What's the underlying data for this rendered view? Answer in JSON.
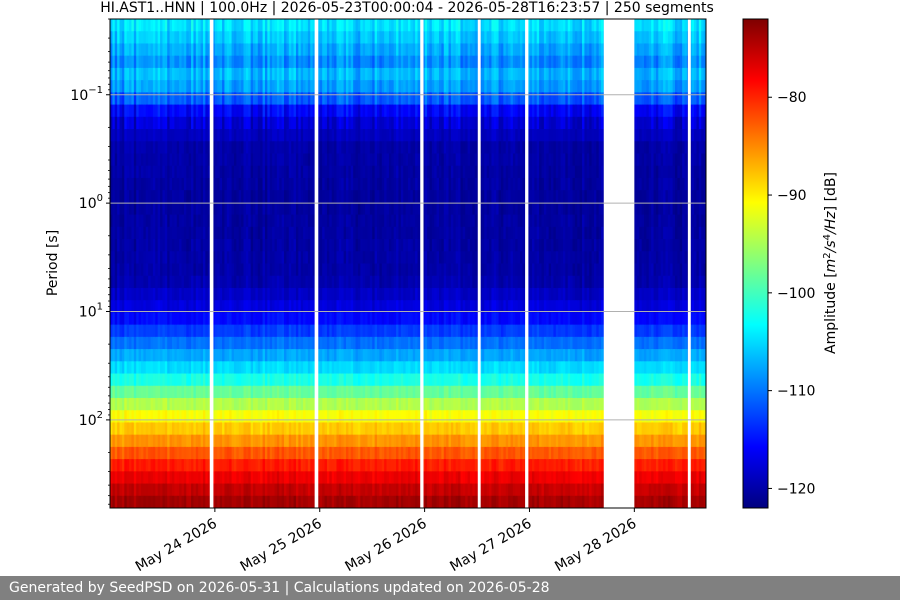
{
  "chart_data": {
    "type": "heatmap",
    "title": "HI.AST1..HNN | 100.0Hz | 2026-05-23T00:00:04 - 2026-05-28T16:23:57 | 250 segments",
    "ylabel": "Period [s]",
    "xlabel": "",
    "yscale": "log",
    "yaxis_inverted": true,
    "ylim": [
      0.02,
      650
    ],
    "y_ticks": [
      {
        "value": 0.1,
        "label": "10^-1",
        "base": "10",
        "exp": "−1"
      },
      {
        "value": 1,
        "label": "10^0",
        "base": "10",
        "exp": "0"
      },
      {
        "value": 10,
        "label": "10^1",
        "base": "10",
        "exp": "1"
      },
      {
        "value": 100,
        "label": "10^2",
        "base": "10",
        "exp": "2"
      }
    ],
    "x_range": [
      "2026-05-23T00:00:04",
      "2026-05-28T16:23:57"
    ],
    "x_ticks": [
      {
        "value": "2026-05-24T00:00:00",
        "label": "May 24 2026"
      },
      {
        "value": "2026-05-25T00:00:00",
        "label": "May 25 2026"
      },
      {
        "value": "2026-05-26T00:00:00",
        "label": "May 26 2026"
      },
      {
        "value": "2026-05-27T00:00:00",
        "label": "May 27 2026"
      },
      {
        "value": "2026-05-28T00:00:00",
        "label": "May 28 2026"
      }
    ],
    "data_gaps": [
      {
        "start": "2026-05-23T22:50:00",
        "end": "2026-05-23T23:40:00"
      },
      {
        "start": "2026-05-24T22:50:00",
        "end": "2026-05-24T23:40:00"
      },
      {
        "start": "2026-05-25T23:00:00",
        "end": "2026-05-25T23:45:00"
      },
      {
        "start": "2026-05-26T12:10:00",
        "end": "2026-05-26T12:50:00"
      },
      {
        "start": "2026-05-26T23:00:00",
        "end": "2026-05-26T23:45:00"
      },
      {
        "start": "2026-05-27T17:00:00",
        "end": "2026-05-28T00:00:00"
      },
      {
        "start": "2026-05-28T12:15:00",
        "end": "2026-05-28T12:55:00"
      }
    ],
    "amplitude_by_period": [
      {
        "period": 0.02,
        "amplitude": -104
      },
      {
        "period": 0.03,
        "amplitude": -106
      },
      {
        "period": 0.05,
        "amplitude": -109
      },
      {
        "period": 0.07,
        "amplitude": -106
      },
      {
        "period": 0.1,
        "amplitude": -110
      },
      {
        "period": 0.15,
        "amplitude": -117
      },
      {
        "period": 0.3,
        "amplitude": -120
      },
      {
        "period": 1,
        "amplitude": -120.5
      },
      {
        "period": 5,
        "amplitude": -120
      },
      {
        "period": 10,
        "amplitude": -117
      },
      {
        "period": 20,
        "amplitude": -110
      },
      {
        "period": 40,
        "amplitude": -103
      },
      {
        "period": 60,
        "amplitude": -97
      },
      {
        "period": 100,
        "amplitude": -90
      },
      {
        "period": 150,
        "amplitude": -86
      },
      {
        "period": 250,
        "amplitude": -80
      },
      {
        "period": 400,
        "amplitude": -76
      },
      {
        "period": 650,
        "amplitude": -73
      }
    ],
    "colorbar": {
      "label": "Amplitude [m²/s⁴/Hz] [dB]",
      "label_parts": {
        "prefix": "Amplitude [",
        "m": "m",
        "m_sup": "2",
        "mid": "/s",
        "s_sup": "4",
        "suffix_unit": "/Hz",
        "suffix": "] [dB]"
      },
      "range": [
        -122,
        -72
      ],
      "ticks": [
        {
          "value": -80,
          "label": "−80"
        },
        {
          "value": -90,
          "label": "−90"
        },
        {
          "value": -100,
          "label": "−100"
        },
        {
          "value": -110,
          "label": "−110"
        },
        {
          "value": -120,
          "label": "−120"
        }
      ],
      "colormap": "jet"
    },
    "grid": true
  },
  "footer": {
    "text": "Generated by SeedPSD on 2026-05-31 | Calculations updated on 2026-05-28"
  }
}
